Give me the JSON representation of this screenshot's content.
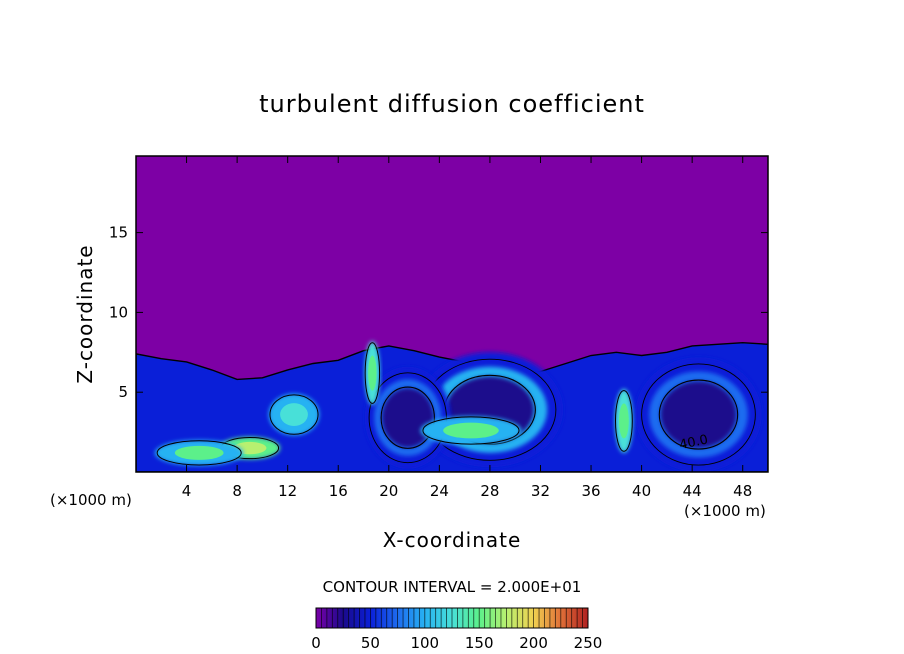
{
  "chart_data": {
    "type": "heatmap",
    "title": "turbulent diffusion coefficient",
    "xlabel": "X-coordinate",
    "ylabel": "Z-coordinate",
    "x_unit": "(×1000 m)",
    "x_unit_right": "(×1000 m)",
    "xlim": [
      0,
      50
    ],
    "ylim": [
      0,
      19.8
    ],
    "x_ticks": [
      4,
      8,
      12,
      16,
      20,
      24,
      28,
      32,
      36,
      40,
      44,
      48
    ],
    "y_ticks": [
      5,
      10,
      15
    ],
    "contour_interval_text": "CONTOUR INTERVAL = 2.000E+01",
    "contour_label": "40.0",
    "colorbar": {
      "min": 0,
      "max": 250,
      "ticks": [
        0,
        50,
        100,
        150,
        200,
        250
      ],
      "colors": [
        "#7a00a8",
        "#1a0a8c",
        "#0a1fd8",
        "#1e6cf0",
        "#27b2f2",
        "#48e0d8",
        "#5cf08a",
        "#b8f070",
        "#f0d050",
        "#e07038",
        "#b02020"
      ]
    },
    "background_color": "#7d00a5",
    "turbulent_layer_top": [
      [
        0,
        7.4
      ],
      [
        2,
        7.1
      ],
      [
        4,
        6.9
      ],
      [
        6,
        6.4
      ],
      [
        8,
        5.8
      ],
      [
        10,
        5.9
      ],
      [
        12,
        6.4
      ],
      [
        14,
        6.8
      ],
      [
        16,
        7.0
      ],
      [
        18,
        7.6
      ],
      [
        20,
        7.9
      ],
      [
        22,
        7.6
      ],
      [
        24,
        7.2
      ],
      [
        26,
        6.9
      ],
      [
        28,
        6.5
      ],
      [
        30,
        6.1
      ],
      [
        32,
        6.3
      ],
      [
        34,
        6.8
      ],
      [
        36,
        7.3
      ],
      [
        38,
        7.5
      ],
      [
        40,
        7.3
      ],
      [
        42,
        7.5
      ],
      [
        44,
        7.9
      ],
      [
        46,
        8.0
      ],
      [
        48,
        8.1
      ],
      [
        50,
        8.0
      ]
    ],
    "features": [
      {
        "kind": "vortex",
        "cx": 28,
        "cz": 3.9,
        "rx": 5.8,
        "rz": 3.6,
        "level": 60
      },
      {
        "kind": "vortex",
        "cx": 44.5,
        "cz": 3.6,
        "rx": 5.0,
        "rz": 3.6,
        "level": 40
      },
      {
        "kind": "vortex",
        "cx": 21.5,
        "cz": 3.4,
        "rx": 3.4,
        "rz": 3.2,
        "level": 50
      },
      {
        "kind": "plume",
        "cx": 9,
        "cz": 1.5,
        "rx": 2.4,
        "rz": 0.7,
        "level": 140
      },
      {
        "kind": "plume",
        "cx": 5,
        "cz": 1.2,
        "rx": 3.5,
        "rz": 0.8,
        "level": 110
      },
      {
        "kind": "plume",
        "cx": 18.7,
        "cz": 6.2,
        "rx": 0.6,
        "rz": 2.0,
        "level": 120
      },
      {
        "kind": "plume",
        "cx": 38.6,
        "cz": 3.2,
        "rx": 0.7,
        "rz": 2.0,
        "level": 120
      },
      {
        "kind": "plume",
        "cx": 26.5,
        "cz": 2.6,
        "rx": 4.0,
        "rz": 0.9,
        "level": 110
      },
      {
        "kind": "plume",
        "cx": 12.5,
        "cz": 3.6,
        "rx": 2.0,
        "rz": 1.3,
        "level": 90
      }
    ]
  }
}
